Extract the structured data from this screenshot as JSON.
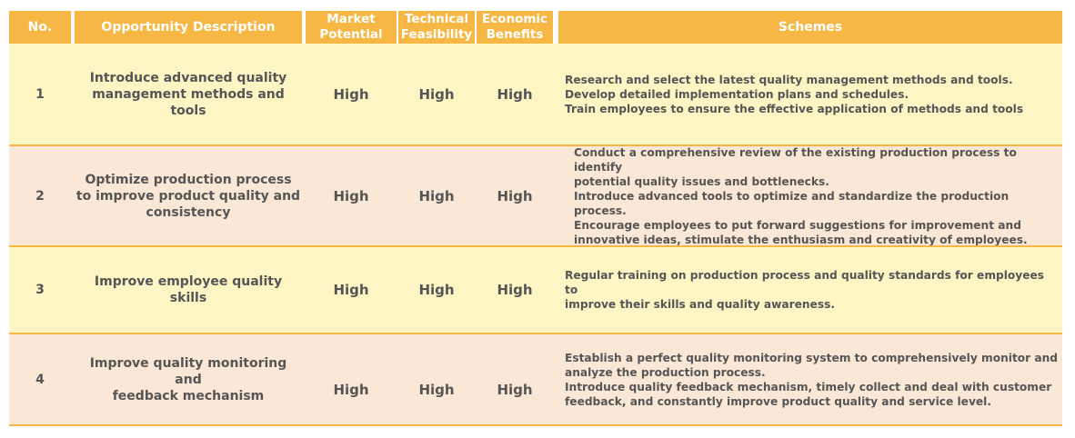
{
  "header": {
    "no": "No.",
    "description": "Opportunity Description",
    "market": "Market\nPotential",
    "technical": "Technical\nFeasibility",
    "economic": "Economic\nBenefits",
    "schemes": "Schemes"
  },
  "rows": [
    {
      "no": "1",
      "description": "Introduce advanced quality\nmanagement methods and tools",
      "market": "High",
      "technical": "High",
      "economic": "High",
      "schemes": "Research and select the latest quality management methods and tools.\nDevelop detailed implementation plans and schedules.\nTrain employees to ensure the effective application of methods and tools"
    },
    {
      "no": "2",
      "description": "Optimize production process\nto improve product quality and\nconsistency",
      "market": "High",
      "technical": "High",
      "economic": "High",
      "schemes": "Conduct a comprehensive review of the existing production process to identify\npotential quality issues and bottlenecks.\nIntroduce advanced tools to optimize and standardize the production process.\nEncourage employees to put forward suggestions for improvement and\ninnovative ideas, stimulate the enthusiasm and creativity of employees."
    },
    {
      "no": "3",
      "description": "Improve employee quality\nskills",
      "market": "High",
      "technical": "High",
      "economic": "High",
      "schemes": "Regular training on production process and quality standards for employees to\nimprove their skills and quality awareness."
    },
    {
      "no": "4",
      "description": "Improve quality monitoring and\nfeedback mechanism",
      "market": "High",
      "technical": "High",
      "economic": "High",
      "schemes": "Establish a perfect quality monitoring system to comprehensively monitor and\nanalyze the production process.\nIntroduce quality feedback mechanism, timely collect and deal with customer\nfeedback, and constantly improve product quality and service level."
    }
  ],
  "colors": {
    "header_bg": "#f7b744",
    "row_yellow": "#fdf6c4",
    "row_peach": "#fbe7d6",
    "text": "#555555"
  }
}
